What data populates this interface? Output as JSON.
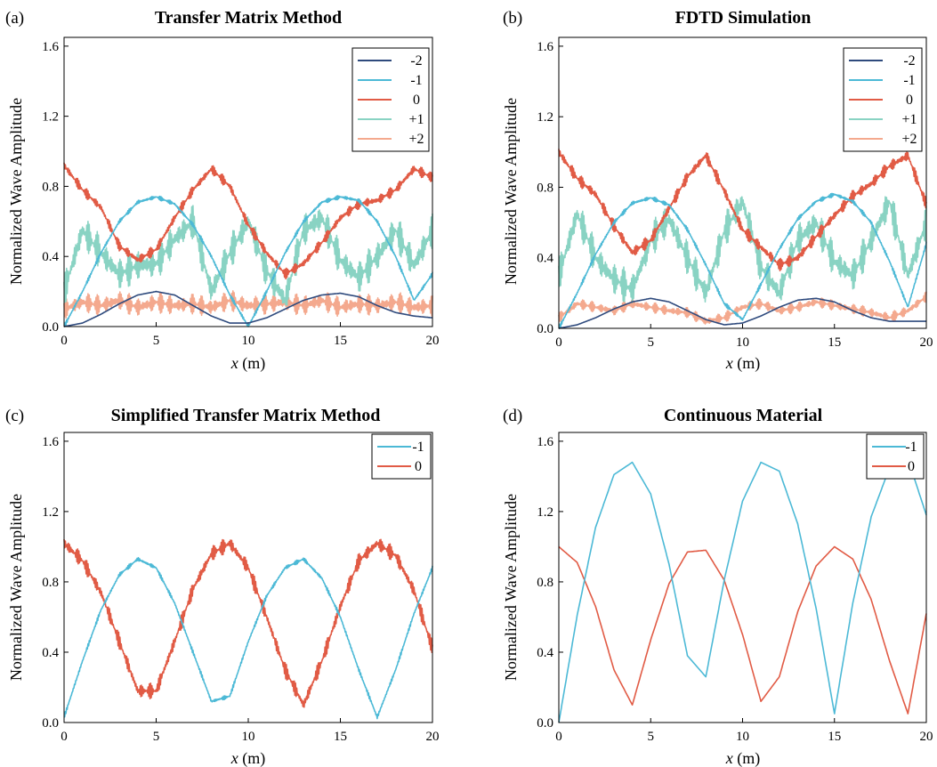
{
  "colors": {
    "n-2": "#2e4a7d",
    "n-1": "#4cb9d6",
    "n0": "#e15b45",
    "n+1": "#89d3c3",
    "n+2": "#f4a98e"
  },
  "chart_data": [
    {
      "id": "a",
      "panel_label": "(a)",
      "title": "Transfer Matrix Method",
      "type": "line",
      "xlabel_var": "x",
      "xlabel_unit": " (m)",
      "ylabel": "Normalized Wave Amplitude",
      "xlim": [
        0,
        20
      ],
      "ylim": [
        0,
        1.65
      ],
      "xticks": [
        "0",
        "5",
        "10",
        "15",
        "20"
      ],
      "yticks": [
        "0.0",
        "0.4",
        "0.8",
        "1.2",
        "1.6"
      ],
      "legend_position": "top-right",
      "x": [
        0,
        1,
        2,
        3,
        4,
        5,
        6,
        7,
        8,
        9,
        10,
        11,
        12,
        13,
        14,
        15,
        16,
        17,
        18,
        19,
        20
      ],
      "series": [
        {
          "name": "-2",
          "color_key": "n-2",
          "values": [
            0.0,
            0.02,
            0.07,
            0.13,
            0.18,
            0.2,
            0.18,
            0.12,
            0.06,
            0.02,
            0.02,
            0.05,
            0.1,
            0.15,
            0.18,
            0.19,
            0.17,
            0.12,
            0.08,
            0.06,
            0.05
          ]
        },
        {
          "name": "-1",
          "color_key": "n-1",
          "values": [
            0.0,
            0.2,
            0.42,
            0.6,
            0.71,
            0.74,
            0.7,
            0.58,
            0.4,
            0.18,
            0.0,
            0.2,
            0.42,
            0.6,
            0.71,
            0.74,
            0.72,
            0.6,
            0.4,
            0.15,
            0.3
          ]
        },
        {
          "name": "0",
          "color_key": "n0",
          "values": [
            0.92,
            0.78,
            0.68,
            0.46,
            0.38,
            0.44,
            0.62,
            0.78,
            0.9,
            0.8,
            0.58,
            0.42,
            0.3,
            0.36,
            0.48,
            0.62,
            0.7,
            0.72,
            0.78,
            0.9,
            0.85
          ]
        },
        {
          "name": "+1",
          "color_key": "n+1",
          "values": [
            0.2,
            0.55,
            0.42,
            0.3,
            0.35,
            0.36,
            0.5,
            0.6,
            0.2,
            0.42,
            0.6,
            0.32,
            0.15,
            0.55,
            0.62,
            0.38,
            0.28,
            0.4,
            0.55,
            0.35,
            0.55
          ]
        },
        {
          "name": "+2",
          "color_key": "n+2",
          "values": [
            0.1,
            0.14,
            0.12,
            0.15,
            0.11,
            0.14,
            0.12,
            0.13,
            0.11,
            0.15,
            0.12,
            0.13,
            0.14,
            0.12,
            0.15,
            0.11,
            0.13,
            0.12,
            0.14,
            0.11,
            0.12
          ]
        }
      ]
    },
    {
      "id": "b",
      "panel_label": "(b)",
      "title": "FDTD Simulation",
      "type": "line",
      "xlabel_var": "x",
      "xlabel_unit": " (m)",
      "ylabel": "Normalized Wave Amplitude",
      "xlim": [
        0,
        20
      ],
      "ylim": [
        0,
        1.65
      ],
      "xticks": [
        "0",
        "5",
        "10",
        "15",
        "20"
      ],
      "yticks": [
        "0.0",
        "0.4",
        "0.8",
        "1.2",
        "1.6"
      ],
      "legend_position": "top-right",
      "x": [
        0,
        1,
        2,
        3,
        4,
        5,
        6,
        7,
        8,
        9,
        10,
        11,
        12,
        13,
        14,
        15,
        16,
        17,
        18,
        19,
        20
      ],
      "series": [
        {
          "name": "-2",
          "color_key": "n-2",
          "values": [
            0.0,
            0.02,
            0.06,
            0.11,
            0.15,
            0.17,
            0.15,
            0.1,
            0.05,
            0.02,
            0.03,
            0.07,
            0.12,
            0.16,
            0.17,
            0.15,
            0.1,
            0.06,
            0.04,
            0.04,
            0.04
          ]
        },
        {
          "name": "-1",
          "color_key": "n-1",
          "values": [
            0.0,
            0.2,
            0.42,
            0.6,
            0.71,
            0.74,
            0.7,
            0.56,
            0.36,
            0.14,
            0.05,
            0.25,
            0.45,
            0.62,
            0.72,
            0.76,
            0.72,
            0.6,
            0.38,
            0.12,
            0.48
          ]
        },
        {
          "name": "0",
          "color_key": "n0",
          "values": [
            1.0,
            0.85,
            0.76,
            0.58,
            0.43,
            0.5,
            0.68,
            0.86,
            0.98,
            0.78,
            0.56,
            0.46,
            0.36,
            0.4,
            0.52,
            0.64,
            0.75,
            0.82,
            0.92,
            0.98,
            0.7
          ]
        },
        {
          "name": "+1",
          "color_key": "n+1",
          "values": [
            0.3,
            0.65,
            0.4,
            0.28,
            0.22,
            0.5,
            0.62,
            0.4,
            0.2,
            0.55,
            0.72,
            0.35,
            0.2,
            0.5,
            0.6,
            0.38,
            0.3,
            0.5,
            0.72,
            0.3,
            0.6
          ]
        },
        {
          "name": "+2",
          "color_key": "n+2",
          "values": [
            0.06,
            0.14,
            0.12,
            0.1,
            0.14,
            0.12,
            0.1,
            0.09,
            0.04,
            0.06,
            0.12,
            0.14,
            0.1,
            0.12,
            0.15,
            0.13,
            0.11,
            0.09,
            0.06,
            0.1,
            0.18
          ]
        }
      ]
    },
    {
      "id": "c",
      "panel_label": "(c)",
      "title": "Simplified Transfer Matrix Method",
      "type": "line",
      "xlabel_var": "x",
      "xlabel_unit": " (m)",
      "ylabel": "Normalized Wave Amplitude",
      "xlim": [
        0,
        20
      ],
      "ylim": [
        0,
        1.65
      ],
      "xticks": [
        "0",
        "5",
        "10",
        "15",
        "20"
      ],
      "yticks": [
        "0.0",
        "0.4",
        "0.8",
        "1.2",
        "1.6"
      ],
      "legend_position": "top-right",
      "x": [
        0,
        1,
        2,
        3,
        4,
        5,
        6,
        7,
        8,
        9,
        10,
        11,
        12,
        13,
        14,
        15,
        16,
        17,
        18,
        19,
        20
      ],
      "series": [
        {
          "name": "-1",
          "color_key": "n-1",
          "values": [
            0.03,
            0.35,
            0.64,
            0.84,
            0.93,
            0.88,
            0.68,
            0.4,
            0.12,
            0.15,
            0.46,
            0.72,
            0.88,
            0.93,
            0.82,
            0.6,
            0.3,
            0.03,
            0.3,
            0.62,
            0.88
          ]
        },
        {
          "name": "0",
          "color_key": "n0",
          "values": [
            1.02,
            0.92,
            0.74,
            0.46,
            0.18,
            0.18,
            0.46,
            0.76,
            0.96,
            1.02,
            0.88,
            0.6,
            0.3,
            0.1,
            0.35,
            0.66,
            0.92,
            1.02,
            0.95,
            0.75,
            0.42
          ]
        }
      ]
    },
    {
      "id": "d",
      "panel_label": "(d)",
      "title": "Continuous Material",
      "type": "line",
      "xlabel_var": "x",
      "xlabel_unit": " (m)",
      "ylabel": "Normalized Wave Amplitude",
      "xlim": [
        0,
        20
      ],
      "ylim": [
        0,
        1.65
      ],
      "xticks": [
        "0",
        "5",
        "10",
        "15",
        "20"
      ],
      "yticks": [
        "0.0",
        "0.4",
        "0.8",
        "1.2",
        "1.6"
      ],
      "legend_position": "top-right",
      "x": [
        0,
        1,
        2,
        3,
        4,
        5,
        6,
        7,
        8,
        9,
        10,
        11,
        12,
        13,
        14,
        15,
        16,
        17,
        18,
        19,
        20
      ],
      "series": [
        {
          "name": "-1",
          "color_key": "n-1",
          "values": [
            0.0,
            0.61,
            1.11,
            1.41,
            1.48,
            1.3,
            0.9,
            0.38,
            0.26,
            0.81,
            1.26,
            1.48,
            1.43,
            1.13,
            0.65,
            0.05,
            0.68,
            1.17,
            1.45,
            1.5,
            1.18
          ]
        },
        {
          "name": "0",
          "color_key": "n0",
          "values": [
            1.0,
            0.91,
            0.66,
            0.3,
            0.1,
            0.47,
            0.79,
            0.97,
            0.98,
            0.81,
            0.5,
            0.12,
            0.26,
            0.63,
            0.89,
            1.0,
            0.93,
            0.7,
            0.35,
            0.05,
            0.62
          ]
        }
      ]
    }
  ]
}
